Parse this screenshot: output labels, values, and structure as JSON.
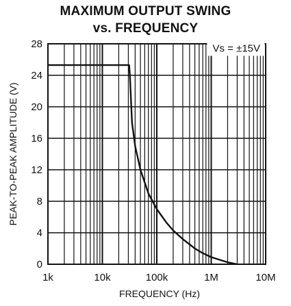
{
  "chart_data": {
    "type": "line",
    "title": "MAXIMUM OUTPUT SWING",
    "subtitle": "vs. FREQUENCY",
    "xlabel": "FREQUENCY (Hz)",
    "ylabel": "PEAK-TO-PEAK AMPLITUDE (V)",
    "x_scale": "log",
    "xlim": [
      1000,
      10000000
    ],
    "ylim": [
      0,
      28
    ],
    "x_ticks": [
      {
        "value": 1000,
        "label": "1k"
      },
      {
        "value": 10000,
        "label": "10k"
      },
      {
        "value": 100000,
        "label": "100k"
      },
      {
        "value": 1000000,
        "label": "1M"
      },
      {
        "value": 10000000,
        "label": "10M"
      }
    ],
    "y_ticks": [
      0,
      4,
      8,
      12,
      16,
      20,
      24,
      28
    ],
    "grid": true,
    "annotation": "Vs = ±15V",
    "series": [
      {
        "x": [
          1000,
          10000,
          25000,
          31000,
          32000,
          35000,
          40000,
          50000,
          70000,
          100000,
          150000,
          200000,
          300000,
          500000,
          700000,
          1000000,
          2000000,
          3000000
        ],
        "y": [
          25.3,
          25.3,
          25.3,
          25.3,
          24.0,
          18.0,
          15.0,
          12.0,
          9.0,
          7.0,
          5.3,
          4.3,
          3.2,
          2.0,
          1.4,
          0.9,
          0.25,
          0.0
        ]
      }
    ]
  },
  "colors": {
    "ink": "#111111",
    "background": "#ffffff"
  }
}
